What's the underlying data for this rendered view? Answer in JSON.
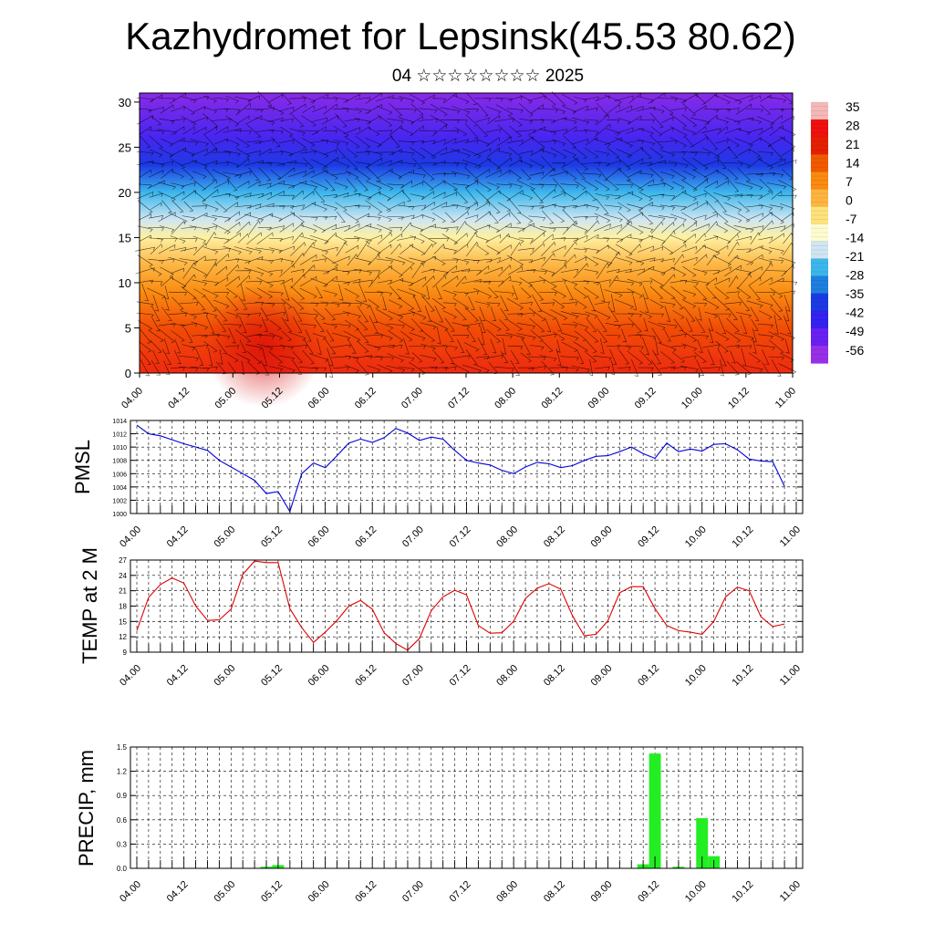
{
  "title": "Kazhydromet for Lepsinsk(45.53 80.62)",
  "subtitle": "04 ☆☆☆☆☆☆☆☆ 2025",
  "chart_data": [
    {
      "type": "heatmap",
      "name": "cross-section",
      "x_tick_labels": [
        "04.00",
        "04.12",
        "05.00",
        "05.12",
        "06.00",
        "06.12",
        "07.00",
        "07.12",
        "08.00",
        "08.12",
        "09.00",
        "09.12",
        "10.00",
        "10.12",
        "11.00"
      ],
      "y_ticks": [
        0,
        5,
        10,
        15,
        20,
        25,
        30
      ],
      "ylim": [
        0,
        31
      ],
      "colorbar_labels": [
        "35",
        "28",
        "21",
        "14",
        "7",
        "0",
        "-7",
        "-14",
        "-21",
        "-28",
        "-35",
        "-42",
        "-49",
        "-56"
      ],
      "colorbar_colors": [
        "#f5b8b8",
        "#f01010",
        "#e42000",
        "#f25a00",
        "#fa8a10",
        "#fdb440",
        "#fee27a",
        "#fdfbd0",
        "#cfe6f2",
        "#3cb6ec",
        "#1e7fe0",
        "#1c3ae4",
        "#3422f0",
        "#6a20f2",
        "#9830e8"
      ],
      "level_colors": [
        {
          "level": 0,
          "color": "#ee2a10"
        },
        {
          "level": 5,
          "color": "#f24c06"
        },
        {
          "level": 9,
          "color": "#fa8c12"
        },
        {
          "level": 12,
          "color": "#fdb644"
        },
        {
          "level": 15,
          "color": "#fff0a0"
        },
        {
          "level": 17,
          "color": "#cfe6f2"
        },
        {
          "level": 20,
          "color": "#3cb6ec"
        },
        {
          "level": 23,
          "color": "#1c3ae4"
        },
        {
          "level": 26,
          "color": "#4626f0"
        },
        {
          "level": 31,
          "color": "#8a2ae8"
        }
      ]
    },
    {
      "type": "line",
      "ylabel": "PMSL",
      "ylim": [
        1000,
        1014
      ],
      "y_ticks": [
        1000,
        1002,
        1004,
        1006,
        1008,
        1010,
        1012,
        1014
      ],
      "x_tick_labels": [
        "04.00",
        "04.12",
        "05.00",
        "05.12",
        "06.00",
        "06.12",
        "07.00",
        "07.12",
        "08.00",
        "08.12",
        "09.00",
        "09.12",
        "10.00",
        "10.12",
        "11.00"
      ],
      "line_color": "#0000dd",
      "x": [
        0,
        3,
        6,
        9,
        12,
        15,
        18,
        21,
        24,
        27,
        30,
        33,
        36,
        39,
        42,
        45,
        48,
        51,
        54,
        57,
        60,
        63,
        66,
        69,
        72,
        75,
        78,
        81,
        84,
        87,
        90,
        93,
        96,
        99,
        102,
        105,
        108,
        111,
        114,
        117,
        120,
        123,
        126,
        129,
        132,
        135,
        138,
        141,
        144,
        147,
        150,
        153,
        156,
        159,
        162,
        165
      ],
      "values": [
        1013.3,
        1012.0,
        1011.7,
        1011.1,
        1010.5,
        1010.0,
        1009.5,
        1008.0,
        1007.0,
        1006.0,
        1005.0,
        1003.0,
        1003.3,
        1000.3,
        1006.0,
        1007.6,
        1006.9,
        1008.7,
        1010.6,
        1011.2,
        1010.7,
        1011.4,
        1012.8,
        1012.1,
        1011.0,
        1011.5,
        1011.2,
        1009.5,
        1008.0,
        1007.6,
        1007.3,
        1006.5,
        1006.0,
        1007.0,
        1007.7,
        1007.5,
        1006.9,
        1007.2,
        1008.0,
        1008.6,
        1008.7,
        1009.3,
        1010.0,
        1009.0,
        1008.3,
        1010.6,
        1009.3,
        1009.7,
        1009.4,
        1010.4,
        1010.5,
        1009.6,
        1008.2,
        1007.9,
        1007.8,
        1004.1
      ]
    },
    {
      "type": "line",
      "ylabel": "TEMP at 2 M",
      "ylim": [
        9,
        27
      ],
      "y_ticks": [
        9,
        12,
        15,
        18,
        21,
        24,
        27
      ],
      "x_tick_labels": [
        "04.00",
        "04.12",
        "05.00",
        "05.12",
        "06.00",
        "06.12",
        "07.00",
        "07.12",
        "08.00",
        "08.12",
        "09.00",
        "09.12",
        "10.00",
        "10.12",
        "11.00"
      ],
      "line_color": "#e00000",
      "x": [
        0,
        3,
        6,
        9,
        12,
        15,
        18,
        21,
        24,
        27,
        30,
        33,
        36,
        39,
        42,
        45,
        48,
        51,
        54,
        57,
        60,
        63,
        66,
        69,
        72,
        75,
        78,
        81,
        84,
        87,
        90,
        93,
        96,
        99,
        102,
        105,
        108,
        111,
        114,
        117,
        120,
        123,
        126,
        129,
        132,
        135,
        138,
        141,
        144,
        147,
        150,
        153,
        156,
        159,
        162,
        165
      ],
      "values": [
        13.2,
        19.7,
        22.2,
        23.5,
        22.5,
        18.0,
        15.2,
        15.3,
        17.4,
        24.2,
        26.8,
        26.5,
        26.5,
        17.5,
        13.8,
        10.9,
        12.9,
        15.2,
        18.0,
        19.1,
        17.4,
        12.8,
        10.7,
        9.4,
        11.7,
        17.1,
        19.8,
        21.1,
        20.2,
        14.2,
        12.7,
        12.8,
        15.0,
        19.5,
        21.5,
        22.4,
        21.3,
        16.1,
        12.2,
        12.5,
        15.1,
        20.6,
        21.8,
        21.8,
        17.5,
        14.2,
        13.2,
        12.9,
        12.5,
        15.0,
        19.8,
        21.7,
        21.0,
        15.9,
        14.0,
        14.5
      ]
    },
    {
      "type": "bar",
      "ylabel": "PRECIP, mm",
      "ylim": [
        0,
        1.5
      ],
      "y_ticks": [
        "0.0",
        "0.3",
        "0.6",
        "0.9",
        "1.2",
        "1.5"
      ],
      "x_tick_labels": [
        "04.00",
        "04.12",
        "05.00",
        "05.12",
        "06.00",
        "06.12",
        "07.00",
        "07.12",
        "08.00",
        "08.12",
        "09.00",
        "09.12",
        "10.00",
        "10.12",
        "11.00"
      ],
      "bar_color": "#22ee22",
      "x": [
        33,
        36,
        129,
        132,
        138,
        144,
        147
      ],
      "values": [
        0.02,
        0.04,
        0.05,
        1.42,
        0.02,
        0.62,
        0.15
      ]
    }
  ]
}
